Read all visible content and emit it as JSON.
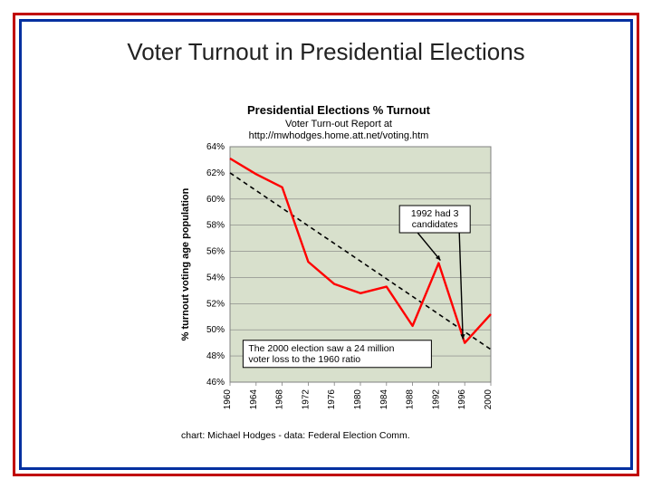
{
  "slide": {
    "title": "Voter Turnout in Presidential Elections"
  },
  "chart": {
    "type": "line",
    "title": "Presidential Elections % Turnout",
    "subtitle": "Voter Turn-out Report at",
    "url": "http://mwhodges.home.att.net/voting.htm",
    "credit": "chart: Michael Hodges -  data: Federal Election Comm.",
    "y_axis_label": "% turnout voting age population",
    "background_color": "#d8e0cc",
    "plot_border_color": "#808080",
    "grid_color": "#808080",
    "trend_color": "#000000",
    "series_color": "#ff0000",
    "series_width": 2.4,
    "trend_dash": "5,4",
    "trend_width": 1.6,
    "xlim": [
      1960,
      2000
    ],
    "ylim": [
      46,
      64
    ],
    "ytick_step": 2,
    "yticks": [
      "46%",
      "48%",
      "50%",
      "52%",
      "54%",
      "56%",
      "58%",
      "60%",
      "62%",
      "64%"
    ],
    "xticks": [
      "1960",
      "1964",
      "1968",
      "1972",
      "1976",
      "1980",
      "1984",
      "1988",
      "1992",
      "1996",
      "2000"
    ],
    "years": [
      1960,
      1964,
      1968,
      1972,
      1976,
      1980,
      1984,
      1988,
      1992,
      1996,
      2000
    ],
    "values": [
      63.1,
      61.9,
      60.9,
      55.2,
      53.5,
      52.8,
      53.3,
      50.3,
      55.1,
      49.0,
      51.2
    ],
    "trend_start": [
      1960,
      62.0
    ],
    "trend_end": [
      2000,
      48.5
    ],
    "annotation1": {
      "text_line1": "1992 had 3",
      "text_line2": "candidates",
      "box_fill": "#ffffff",
      "box_stroke": "#000000",
      "arrow_color": "#000000"
    },
    "annotation2": {
      "text_line1": "The 2000 election saw a 24 million",
      "text_line2": "voter loss to the 1960 ratio",
      "box_fill": "#ffffff",
      "box_stroke": "#000000"
    },
    "title_fontsize": 13,
    "label_fontsize": 11,
    "tick_fontsize": 10
  }
}
